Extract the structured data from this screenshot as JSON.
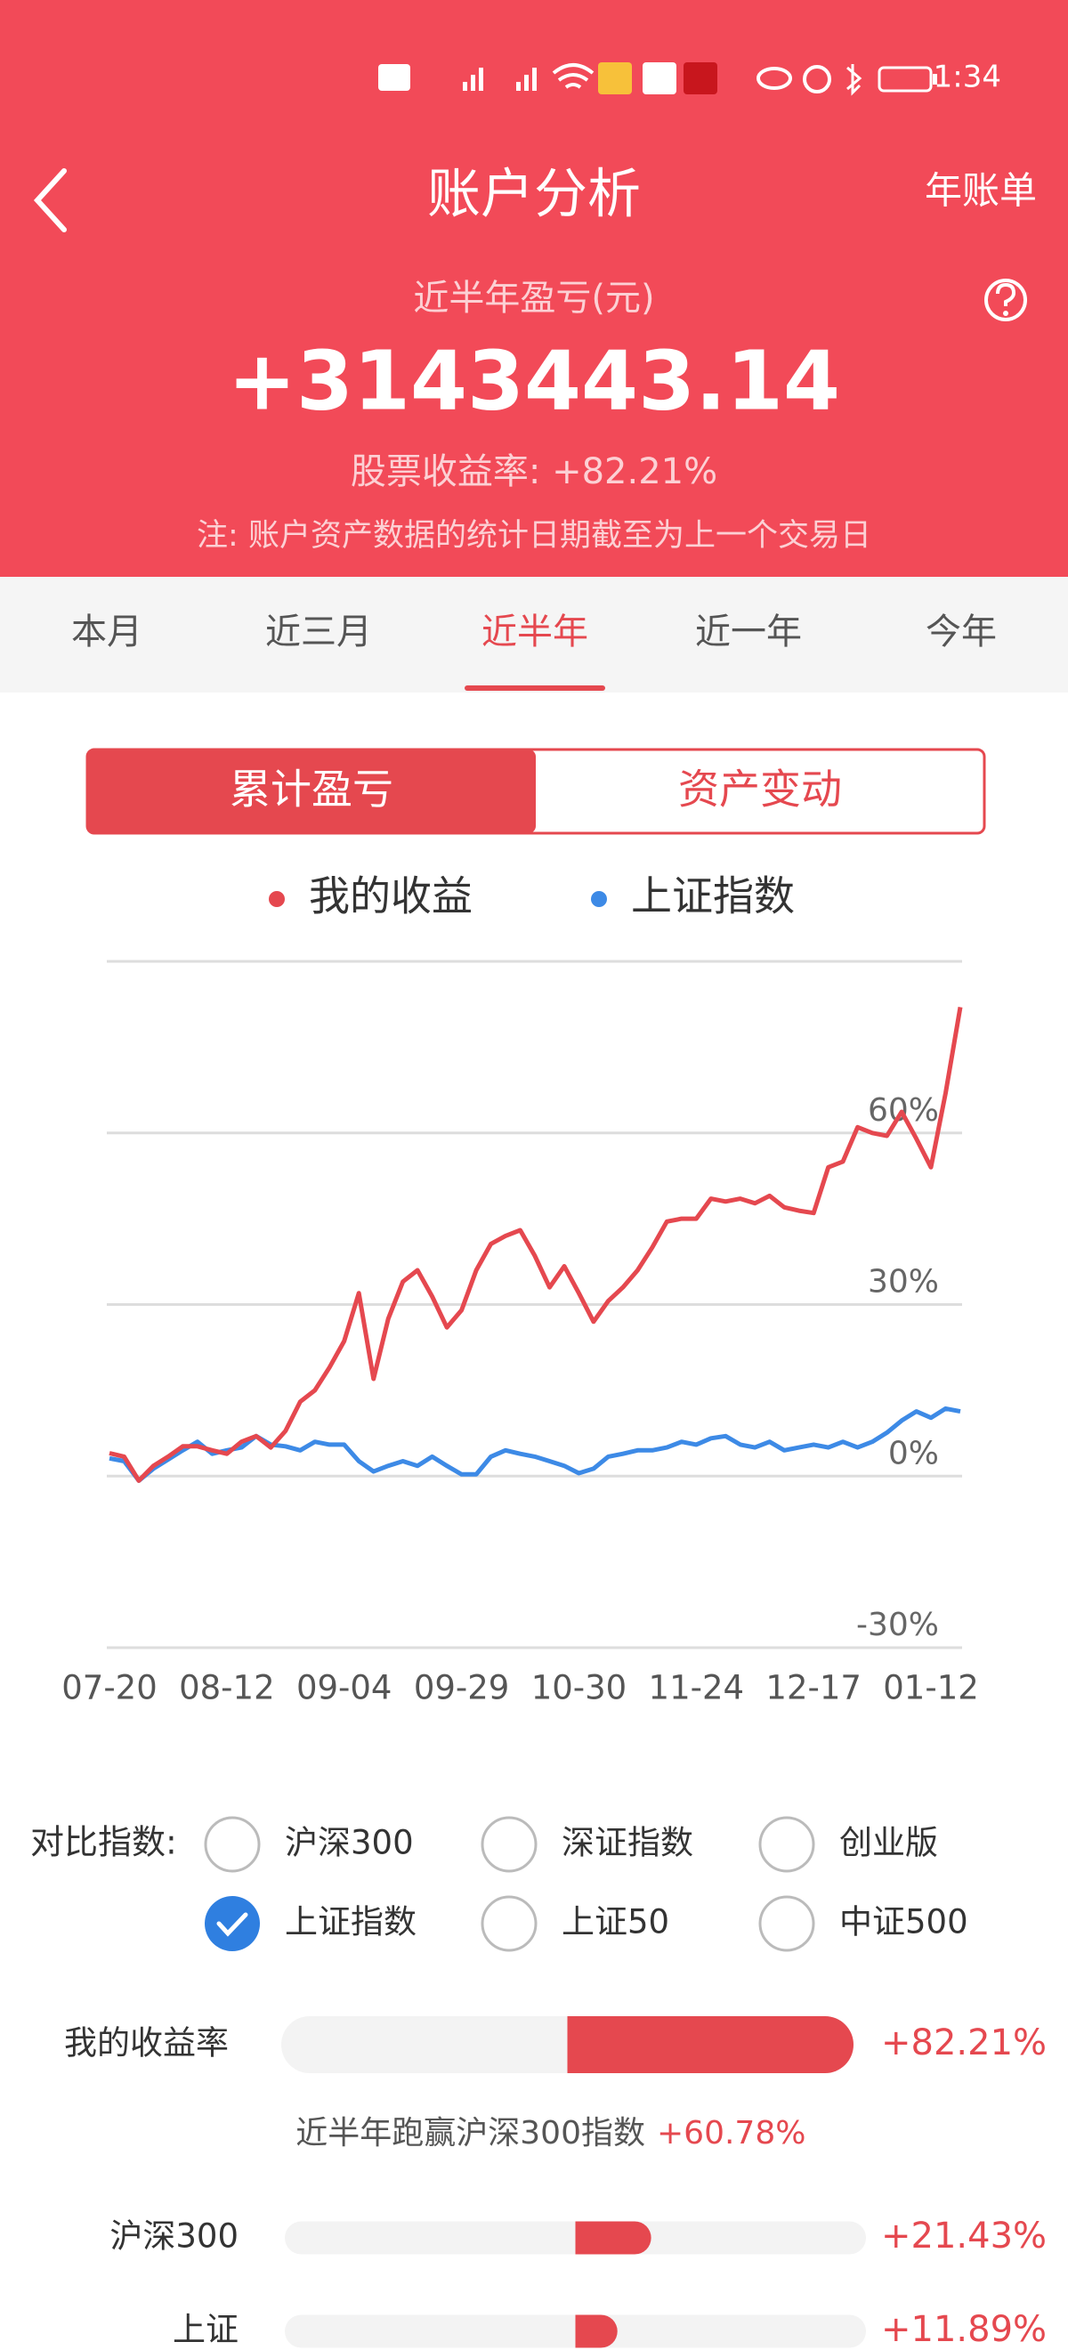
{
  "status_bar": {
    "time": "1:34"
  },
  "header": {
    "title": "账户分析",
    "action": "年账单",
    "period_label": "近半年盈亏(元)",
    "amount": "+3143443.14",
    "stock_return": "股票收益率: +82.21%",
    "note": "注: 账户资产数据的统计日期截至为上一个交易日"
  },
  "tabs": {
    "items": [
      "本月",
      "近三月",
      "近半年",
      "近一年",
      "今年"
    ],
    "selected": 2
  },
  "toggle": {
    "items": [
      "累计盈亏",
      "资产变动"
    ],
    "selected": 0
  },
  "chart_data": {
    "type": "line",
    "categories": [
      "07-20",
      null,
      null,
      null,
      null,
      null,
      null,
      null,
      "08-12",
      null,
      null,
      null,
      null,
      null,
      null,
      null,
      "09-04",
      null,
      null,
      null,
      null,
      null,
      null,
      null,
      "09-29",
      null,
      null,
      null,
      null,
      null,
      null,
      null,
      "10-30",
      null,
      null,
      null,
      null,
      null,
      null,
      null,
      "11-24",
      null,
      null,
      null,
      null,
      null,
      null,
      null,
      "12-17",
      null,
      null,
      null,
      null,
      null,
      null,
      null,
      "01-12",
      null,
      null
    ],
    "series": [
      {
        "name": "我的收益",
        "color": "#e5484f",
        "values": [
          4,
          3.4,
          -0.8,
          1.8,
          3.4,
          5.2,
          5.2,
          4.5,
          3.9,
          6,
          7,
          5,
          7.9,
          13,
          15,
          19,
          23.6,
          32,
          17,
          27.5,
          34,
          36,
          31.4,
          26,
          29,
          36,
          40.6,
          42,
          43,
          38.5,
          33,
          36.7,
          32,
          27,
          30.6,
          33,
          36,
          40,
          44.5,
          45,
          45,
          48.5,
          48,
          48.5,
          47.7,
          49,
          47,
          46.4,
          46,
          54,
          55,
          61,
          60,
          59.5,
          63.7,
          59,
          54,
          67,
          82
        ]
      },
      {
        "name": "上证指数",
        "color": "#3d8ae6",
        "values": [
          3.1,
          2.6,
          -0.8,
          1.3,
          2.9,
          4.5,
          6,
          3.9,
          4.5,
          5,
          7,
          5.5,
          5.2,
          4.5,
          6,
          5.5,
          5.5,
          2.6,
          0.8,
          1.8,
          2.6,
          1.8,
          3.4,
          1.8,
          0.3,
          0.3,
          3.4,
          4.5,
          3.9,
          3.4,
          2.6,
          1.8,
          0.5,
          1.3,
          3.4,
          3.9,
          4.5,
          4.5,
          5,
          6,
          5.5,
          6.6,
          7,
          5.5,
          5,
          6,
          4.5,
          5,
          5.5,
          5,
          6,
          5,
          6,
          7.6,
          9.7,
          11.3,
          10.2,
          11.8,
          11.3
        ]
      }
    ],
    "ylim": [
      -30,
      90
    ],
    "yticks": [
      {
        "value": -30,
        "label": "-30%"
      },
      {
        "value": 0,
        "label": "0%"
      },
      {
        "value": 30,
        "label": "30%"
      },
      {
        "value": 60,
        "label": "60%"
      }
    ],
    "grid": true
  },
  "compare": {
    "label": "对比指数:",
    "options": [
      {
        "label": "沪深300",
        "checked": false
      },
      {
        "label": "深证指数",
        "checked": false
      },
      {
        "label": "创业版",
        "checked": false
      },
      {
        "label": "上证指数",
        "checked": true
      },
      {
        "label": "上证50",
        "checked": false
      },
      {
        "label": "中证500",
        "checked": false
      }
    ]
  },
  "returns": {
    "rows": [
      {
        "name": "我的收益率",
        "value": 82.21,
        "value_label": "+82.21%"
      },
      {
        "name": "沪深300",
        "value": 21.43,
        "value_label": "+21.43%"
      },
      {
        "name": "上证",
        "value": 11.89,
        "value_label": "+11.89%"
      }
    ],
    "summary": "近半年跑赢沪深300指数",
    "summary_value": "+60.78%"
  }
}
